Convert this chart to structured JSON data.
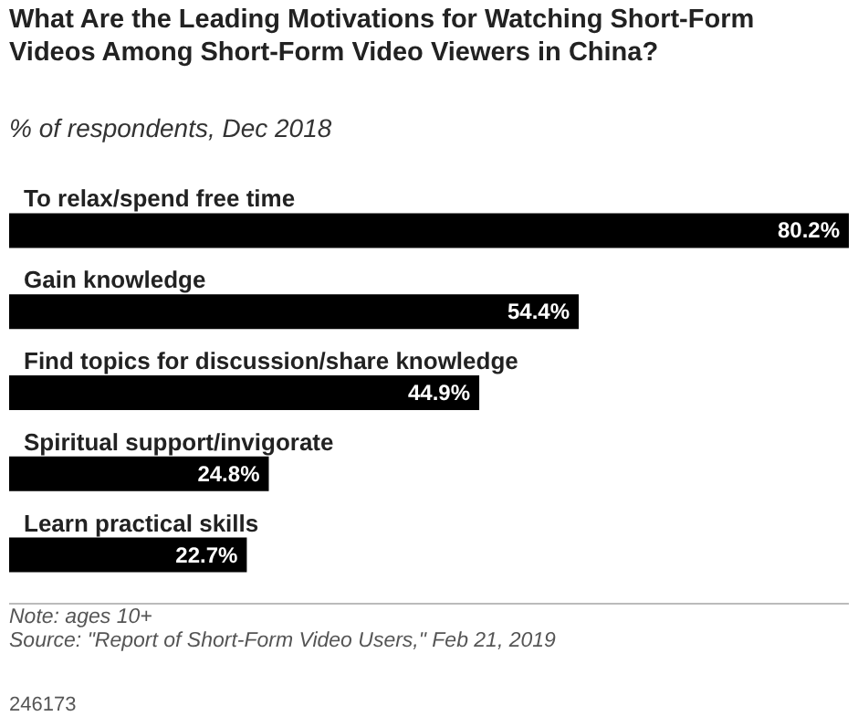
{
  "chart_data": {
    "type": "bar",
    "orientation": "horizontal",
    "title": "What Are the Leading Motivations for Watching Short-Form Videos Among Short-Form Video Viewers in China?",
    "subtitle": "% of respondents, Dec 2018",
    "categories": [
      "To relax/spend free time",
      "Gain knowledge",
      "Find topics for discussion/share knowledge",
      "Spiritual support/invigorate",
      "Learn practical skills"
    ],
    "values": [
      80.2,
      54.4,
      44.9,
      24.8,
      22.7
    ],
    "value_labels": [
      "80.2%",
      "54.4%",
      "44.9%",
      "24.8%",
      "22.7%"
    ],
    "color": "#000000",
    "annotations": [
      "Note: ages 10+",
      "Source: \"Report of Short-Form Video Users,\" Feb 21, 2019",
      "246173"
    ]
  }
}
